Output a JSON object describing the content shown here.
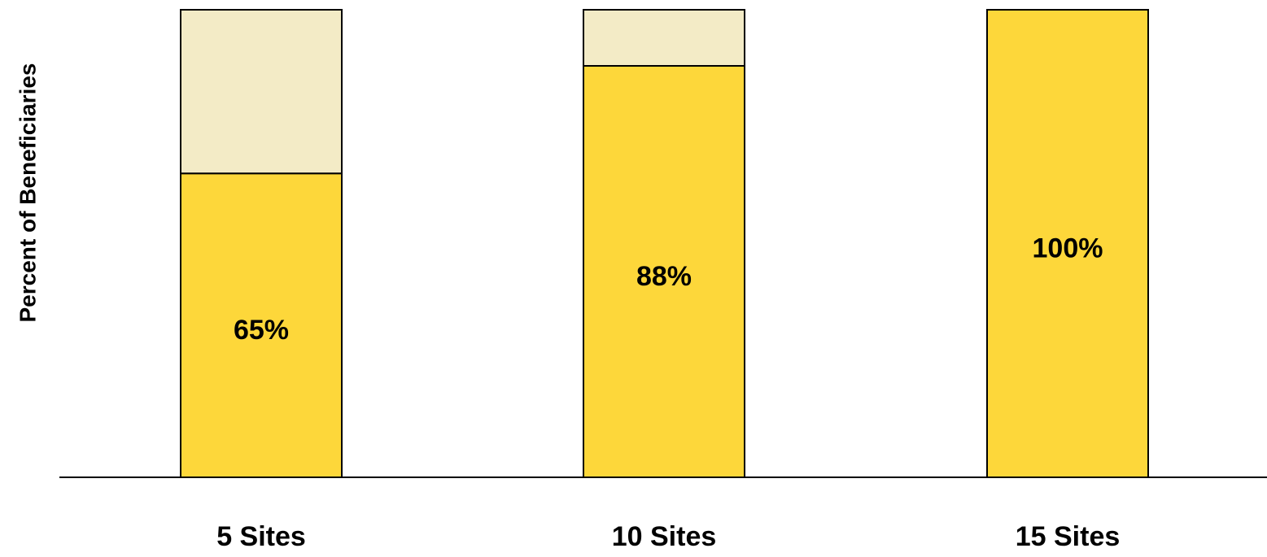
{
  "chart_data": {
    "type": "bar",
    "stacked": true,
    "ylabel": "Percent of Beneficiaries",
    "categories": [
      "5 Sites",
      "10 Sites",
      "15 Sites"
    ],
    "series": [
      {
        "color": "#fdd73a",
        "values": [
          65,
          88,
          100
        ],
        "value_labels": [
          "65%",
          "88%",
          "100%"
        ]
      },
      {
        "color": "#f3ebc6",
        "values": [
          35,
          12,
          0
        ]
      }
    ],
    "ylim": [
      0,
      100
    ]
  }
}
